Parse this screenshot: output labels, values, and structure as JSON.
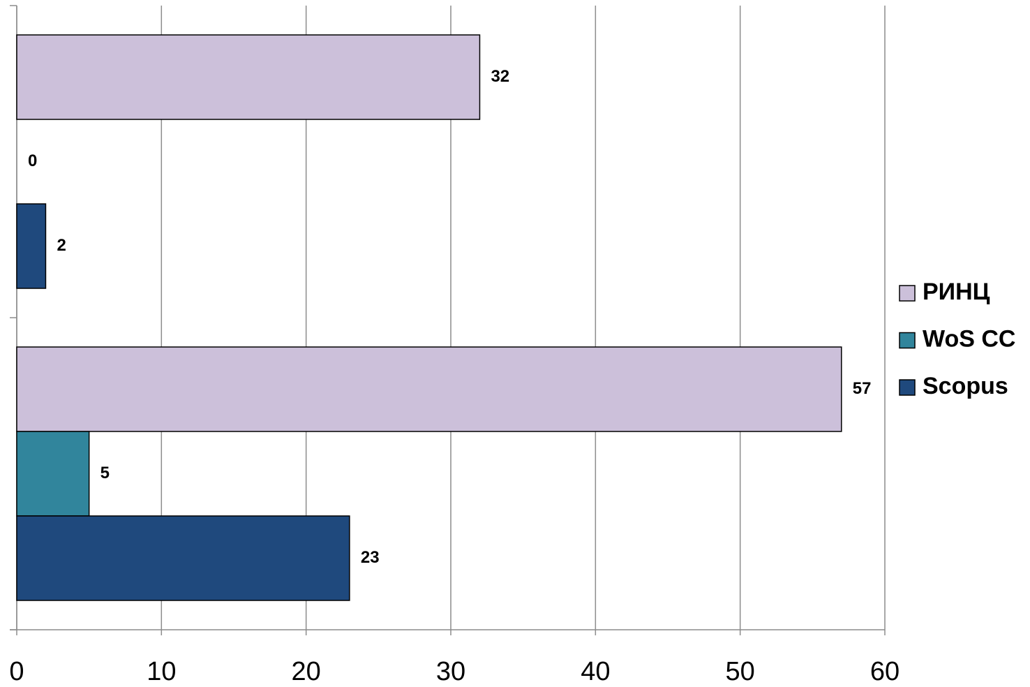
{
  "chart_data": {
    "type": "barh",
    "categories": [
      null,
      null
    ],
    "series": [
      {
        "name": "РИНЦ",
        "color": "#ccc0da",
        "values": [
          57,
          32
        ]
      },
      {
        "name": "WoS CC",
        "color": "#31859c",
        "values": [
          5,
          0
        ]
      },
      {
        "name": "Scopus",
        "color": "#1f497d",
        "values": [
          23,
          2
        ]
      }
    ],
    "xlim": [
      0,
      60
    ],
    "xticks": [
      0,
      10,
      20,
      30,
      40,
      50,
      60
    ],
    "grid": true,
    "legend": "right"
  }
}
